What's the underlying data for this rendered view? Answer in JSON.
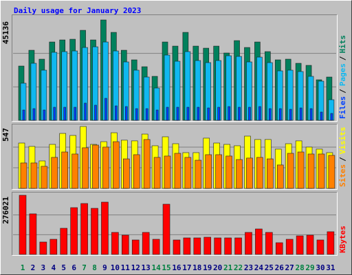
{
  "chart_data": [
    {
      "type": "bar",
      "title": "Daily usage for January 2023",
      "ylim": [
        0,
        45136
      ],
      "yticks": [
        45136
      ],
      "legend_separator": "/",
      "series": [
        {
          "name": "Hits",
          "color": "#00805c",
          "values": [
            24411,
            31518,
            27501,
            35226,
            36153,
            36462,
            40479,
            36153,
            45136,
            39552,
            31518,
            27192,
            24102,
            19776,
            35226,
            33372,
            39552,
            33372,
            32445,
            33372,
            30282,
            35844,
            32754,
            35226,
            30900,
            27192,
            27501,
            25647,
            24720,
            18231,
            19467
          ]
        },
        {
          "name": "Pages",
          "color": "#10b8f0",
          "values": [
            16686,
            25647,
            22557,
            30591,
            30900,
            31209,
            32754,
            33063,
            35226,
            31209,
            26265,
            22557,
            19467,
            14523,
            29355,
            26574,
            30900,
            26883,
            25956,
            26883,
            29046,
            28737,
            26265,
            28428,
            25956,
            22248,
            22557,
            21939,
            19776,
            17613,
            9270
          ]
        },
        {
          "name": "Files",
          "color": "#0040ff",
          "values": [
            4635,
            5253,
            4635,
            5871,
            5871,
            5871,
            7725,
            6798,
            9888,
            6489,
            6180,
            5253,
            5253,
            4635,
            5871,
            5871,
            5871,
            5871,
            5562,
            5871,
            6180,
            5871,
            5871,
            6180,
            5253,
            5253,
            4944,
            5562,
            5253,
            3708,
            3090
          ]
        }
      ]
    },
    {
      "type": "bar",
      "ylim": [
        0,
        547
      ],
      "yticks": [
        547
      ],
      "legend_separator": "/",
      "series": [
        {
          "name": "Visits",
          "color": "#ffff00",
          "values": [
            401,
            371,
            243,
            389,
            486,
            468,
            547,
            389,
            413,
            492,
            426,
            420,
            480,
            377,
            456,
            395,
            316,
            316,
            444,
            401,
            389,
            377,
            462,
            432,
            432,
            347,
            395,
            420,
            365,
            347,
            316
          ]
        },
        {
          "name": "Sites",
          "color": "#ff8000",
          "values": [
            225,
            225,
            195,
            274,
            322,
            304,
            359,
            383,
            365,
            413,
            261,
            298,
            432,
            274,
            286,
            310,
            274,
            249,
            298,
            298,
            286,
            255,
            268,
            274,
            261,
            207,
            310,
            322,
            304,
            304,
            292
          ]
        }
      ]
    },
    {
      "type": "bar",
      "ylim": [
        0,
        276021
      ],
      "yticks": [
        276021
      ],
      "categories": [
        "1",
        "2",
        "3",
        "4",
        "5",
        "6",
        "7",
        "8",
        "9",
        "10",
        "11",
        "12",
        "13",
        "14",
        "15",
        "16",
        "17",
        "18",
        "19",
        "20",
        "21",
        "22",
        "23",
        "24",
        "25",
        "26",
        "27",
        "28",
        "29",
        "30",
        "31"
      ],
      "category_colors": [
        "#008040",
        "#000080",
        "#000080",
        "#000080",
        "#000080",
        "#000080",
        "#008040",
        "#008040",
        "#000080",
        "#000080",
        "#000080",
        "#000080",
        "#000080",
        "#008040",
        "#008040",
        "#000080",
        "#000080",
        "#000080",
        "#000080",
        "#000080",
        "#008040",
        "#008040",
        "#000080",
        "#000080",
        "#000080",
        "#000080",
        "#000080",
        "#008040",
        "#008040",
        "#000080",
        "#000080"
      ],
      "series": [
        {
          "name": "KBytes",
          "color": "#ff0000",
          "values": [
            276021,
            189390,
            57780,
            70620,
            121980,
            218280,
            237540,
            215070,
            243960,
            102720,
            89880,
            67410,
            102720,
            70620,
            234330,
            67410,
            77040,
            77040,
            80250,
            77040,
            77040,
            77040,
            102720,
            118770,
            102720,
            54570,
            70620,
            86670,
            89880,
            67410,
            105930
          ]
        }
      ]
    }
  ]
}
